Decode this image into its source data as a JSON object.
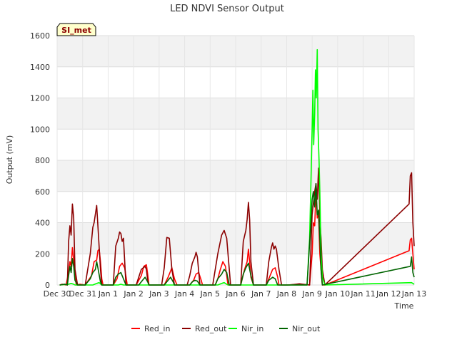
{
  "chart_data": {
    "type": "line",
    "title": "LED NDVI Sensor Output",
    "xlabel": "Time",
    "ylabel": "Output (mV)",
    "site_label": "SI_met",
    "ylim": [
      0,
      1600
    ],
    "yticks": [
      0,
      200,
      400,
      600,
      800,
      1000,
      1200,
      1400,
      1600
    ],
    "xlim": [
      0,
      14
    ],
    "xticks": [
      {
        "v": 0,
        "label": "Dec 30"
      },
      {
        "v": 1,
        "label": "Dec 31"
      },
      {
        "v": 2,
        "label": "Jan 1"
      },
      {
        "v": 3,
        "label": "Jan 2"
      },
      {
        "v": 4,
        "label": "Jan 3"
      },
      {
        "v": 5,
        "label": "Jan 4"
      },
      {
        "v": 6,
        "label": "Jan 5"
      },
      {
        "v": 7,
        "label": "Jan 6"
      },
      {
        "v": 8,
        "label": "Jan 7"
      },
      {
        "v": 9,
        "label": "Jan 8"
      },
      {
        "v": 10,
        "label": "Jan 9"
      },
      {
        "v": 11,
        "label": "Jan 10"
      },
      {
        "v": 12,
        "label": "Jan 11"
      },
      {
        "v": 13,
        "label": "Jan 12"
      },
      {
        "v": 14,
        "label": "Jan 13"
      }
    ],
    "series": [
      {
        "name": "Red_in",
        "color": "#ff0000",
        "points": [
          [
            0.1,
            0
          ],
          [
            0.2,
            5
          ],
          [
            0.35,
            0
          ],
          [
            0.45,
            80
          ],
          [
            0.5,
            150
          ],
          [
            0.55,
            120
          ],
          [
            0.6,
            240
          ],
          [
            0.65,
            160
          ],
          [
            0.7,
            60
          ],
          [
            0.75,
            0
          ],
          [
            0.9,
            5
          ],
          [
            1.1,
            0
          ],
          [
            1.35,
            60
          ],
          [
            1.45,
            150
          ],
          [
            1.55,
            160
          ],
          [
            1.6,
            220
          ],
          [
            1.65,
            230
          ],
          [
            1.7,
            150
          ],
          [
            1.75,
            40
          ],
          [
            1.8,
            0
          ],
          [
            2.2,
            0
          ],
          [
            2.35,
            40
          ],
          [
            2.45,
            120
          ],
          [
            2.55,
            140
          ],
          [
            2.65,
            110
          ],
          [
            2.75,
            0
          ],
          [
            3.1,
            0
          ],
          [
            3.3,
            60
          ],
          [
            3.4,
            120
          ],
          [
            3.5,
            130
          ],
          [
            3.55,
            70
          ],
          [
            3.6,
            0
          ],
          [
            4.2,
            0
          ],
          [
            4.35,
            50
          ],
          [
            4.5,
            110
          ],
          [
            4.6,
            40
          ],
          [
            4.7,
            0
          ],
          [
            5.2,
            0
          ],
          [
            5.35,
            30
          ],
          [
            5.45,
            70
          ],
          [
            5.55,
            80
          ],
          [
            5.65,
            30
          ],
          [
            5.7,
            0
          ],
          [
            6.2,
            0
          ],
          [
            6.3,
            40
          ],
          [
            6.4,
            100
          ],
          [
            6.5,
            150
          ],
          [
            6.6,
            120
          ],
          [
            6.7,
            0
          ],
          [
            7.2,
            0
          ],
          [
            7.35,
            100
          ],
          [
            7.45,
            150
          ],
          [
            7.5,
            230
          ],
          [
            7.55,
            150
          ],
          [
            7.6,
            50
          ],
          [
            7.7,
            0
          ],
          [
            8.2,
            0
          ],
          [
            8.35,
            60
          ],
          [
            8.45,
            100
          ],
          [
            8.55,
            110
          ],
          [
            8.65,
            50
          ],
          [
            8.7,
            0
          ],
          [
            9.0,
            0
          ],
          [
            9.5,
            5
          ],
          [
            9.9,
            0
          ],
          [
            10.0,
            200
          ],
          [
            10.05,
            400
          ],
          [
            10.1,
            380
          ],
          [
            10.15,
            600
          ],
          [
            10.2,
            430
          ],
          [
            10.25,
            460
          ],
          [
            10.3,
            200
          ],
          [
            10.35,
            100
          ],
          [
            10.4,
            0
          ],
          [
            10.5,
            0
          ],
          [
            13.8,
            220
          ],
          [
            13.85,
            290
          ],
          [
            13.9,
            300
          ],
          [
            13.95,
            200
          ],
          [
            14.0,
            100
          ]
        ]
      },
      {
        "name": "Red_out",
        "color": "#8b0000",
        "points": [
          [
            0.1,
            0
          ],
          [
            0.3,
            5
          ],
          [
            0.4,
            0
          ],
          [
            0.45,
            280
          ],
          [
            0.5,
            380
          ],
          [
            0.55,
            320
          ],
          [
            0.6,
            520
          ],
          [
            0.65,
            430
          ],
          [
            0.7,
            100
          ],
          [
            0.8,
            0
          ],
          [
            1.1,
            0
          ],
          [
            1.3,
            200
          ],
          [
            1.4,
            370
          ],
          [
            1.45,
            400
          ],
          [
            1.55,
            510
          ],
          [
            1.6,
            380
          ],
          [
            1.7,
            100
          ],
          [
            1.75,
            0
          ],
          [
            2.2,
            0
          ],
          [
            2.3,
            250
          ],
          [
            2.4,
            300
          ],
          [
            2.45,
            340
          ],
          [
            2.5,
            330
          ],
          [
            2.55,
            280
          ],
          [
            2.6,
            300
          ],
          [
            2.7,
            0
          ],
          [
            3.1,
            0
          ],
          [
            3.3,
            100
          ],
          [
            3.45,
            120
          ],
          [
            3.5,
            100
          ],
          [
            3.55,
            30
          ],
          [
            3.6,
            0
          ],
          [
            4.1,
            0
          ],
          [
            4.2,
            110
          ],
          [
            4.3,
            305
          ],
          [
            4.4,
            300
          ],
          [
            4.5,
            100
          ],
          [
            4.6,
            0
          ],
          [
            5.1,
            0
          ],
          [
            5.2,
            60
          ],
          [
            5.3,
            140
          ],
          [
            5.4,
            180
          ],
          [
            5.45,
            210
          ],
          [
            5.5,
            180
          ],
          [
            5.55,
            90
          ],
          [
            5.6,
            0
          ],
          [
            6.1,
            0
          ],
          [
            6.3,
            200
          ],
          [
            6.45,
            320
          ],
          [
            6.55,
            350
          ],
          [
            6.65,
            300
          ],
          [
            6.75,
            100
          ],
          [
            6.8,
            0
          ],
          [
            7.2,
            0
          ],
          [
            7.3,
            280
          ],
          [
            7.4,
            350
          ],
          [
            7.45,
            420
          ],
          [
            7.5,
            530
          ],
          [
            7.55,
            420
          ],
          [
            7.6,
            150
          ],
          [
            7.7,
            0
          ],
          [
            8.2,
            0
          ],
          [
            8.3,
            150
          ],
          [
            8.4,
            240
          ],
          [
            8.45,
            270
          ],
          [
            8.5,
            230
          ],
          [
            8.55,
            250
          ],
          [
            8.6,
            230
          ],
          [
            8.7,
            100
          ],
          [
            8.8,
            0
          ],
          [
            9.1,
            0
          ],
          [
            9.5,
            8
          ],
          [
            9.9,
            0
          ],
          [
            10.0,
            450
          ],
          [
            10.1,
            600
          ],
          [
            10.15,
            650
          ],
          [
            10.2,
            550
          ],
          [
            10.25,
            750
          ],
          [
            10.3,
            440
          ],
          [
            10.35,
            300
          ],
          [
            10.4,
            100
          ],
          [
            10.5,
            0
          ],
          [
            13.8,
            520
          ],
          [
            13.85,
            700
          ],
          [
            13.9,
            720
          ],
          [
            13.95,
            400
          ],
          [
            14.0,
            250
          ]
        ]
      },
      {
        "name": "Nir_in",
        "color": "#00ff00",
        "points": [
          [
            0.1,
            0
          ],
          [
            0.45,
            5
          ],
          [
            0.55,
            10
          ],
          [
            0.65,
            5
          ],
          [
            0.7,
            0
          ],
          [
            1.4,
            0
          ],
          [
            1.55,
            10
          ],
          [
            1.65,
            15
          ],
          [
            1.75,
            0
          ],
          [
            2.4,
            0
          ],
          [
            2.5,
            5
          ],
          [
            2.6,
            0
          ],
          [
            6.3,
            0
          ],
          [
            6.45,
            10
          ],
          [
            6.55,
            15
          ],
          [
            6.65,
            5
          ],
          [
            6.7,
            0
          ],
          [
            9.8,
            0
          ],
          [
            9.9,
            300
          ],
          [
            9.95,
            650
          ],
          [
            10.0,
            1000
          ],
          [
            10.03,
            1250
          ],
          [
            10.06,
            900
          ],
          [
            10.1,
            1100
          ],
          [
            10.13,
            1380
          ],
          [
            10.16,
            1200
          ],
          [
            10.2,
            1510
          ],
          [
            10.23,
            1000
          ],
          [
            10.27,
            800
          ],
          [
            10.3,
            600
          ],
          [
            10.35,
            200
          ],
          [
            10.4,
            50
          ],
          [
            10.5,
            0
          ],
          [
            13.9,
            15
          ],
          [
            14.0,
            5
          ]
        ]
      },
      {
        "name": "Nir_out",
        "color": "#006400",
        "points": [
          [
            0.1,
            0
          ],
          [
            0.3,
            5
          ],
          [
            0.4,
            0
          ],
          [
            0.45,
            60
          ],
          [
            0.5,
            120
          ],
          [
            0.55,
            80
          ],
          [
            0.6,
            170
          ],
          [
            0.65,
            120
          ],
          [
            0.7,
            30
          ],
          [
            0.8,
            0
          ],
          [
            1.1,
            0
          ],
          [
            1.3,
            40
          ],
          [
            1.4,
            80
          ],
          [
            1.5,
            100
          ],
          [
            1.55,
            150
          ],
          [
            1.6,
            110
          ],
          [
            1.7,
            20
          ],
          [
            1.75,
            0
          ],
          [
            2.2,
            0
          ],
          [
            2.3,
            50
          ],
          [
            2.4,
            70
          ],
          [
            2.5,
            80
          ],
          [
            2.6,
            40
          ],
          [
            2.7,
            0
          ],
          [
            3.2,
            0
          ],
          [
            3.35,
            30
          ],
          [
            3.45,
            50
          ],
          [
            3.55,
            20
          ],
          [
            3.6,
            0
          ],
          [
            4.2,
            0
          ],
          [
            4.35,
            30
          ],
          [
            4.45,
            50
          ],
          [
            4.55,
            20
          ],
          [
            4.6,
            0
          ],
          [
            5.2,
            0
          ],
          [
            5.3,
            20
          ],
          [
            5.4,
            30
          ],
          [
            5.5,
            25
          ],
          [
            5.6,
            0
          ],
          [
            6.2,
            0
          ],
          [
            6.3,
            40
          ],
          [
            6.45,
            70
          ],
          [
            6.55,
            100
          ],
          [
            6.65,
            80
          ],
          [
            6.75,
            0
          ],
          [
            7.2,
            0
          ],
          [
            7.3,
            70
          ],
          [
            7.4,
            110
          ],
          [
            7.5,
            140
          ],
          [
            7.6,
            60
          ],
          [
            7.7,
            0
          ],
          [
            8.2,
            0
          ],
          [
            8.3,
            30
          ],
          [
            8.45,
            50
          ],
          [
            8.55,
            40
          ],
          [
            8.65,
            0
          ],
          [
            9.8,
            0
          ],
          [
            9.95,
            400
          ],
          [
            10.0,
            550
          ],
          [
            10.05,
            600
          ],
          [
            10.1,
            500
          ],
          [
            10.15,
            650
          ],
          [
            10.2,
            450
          ],
          [
            10.25,
            480
          ],
          [
            10.3,
            300
          ],
          [
            10.35,
            100
          ],
          [
            10.4,
            0
          ],
          [
            13.85,
            120
          ],
          [
            13.9,
            180
          ],
          [
            13.95,
            80
          ],
          [
            14.0,
            50
          ]
        ]
      }
    ]
  }
}
